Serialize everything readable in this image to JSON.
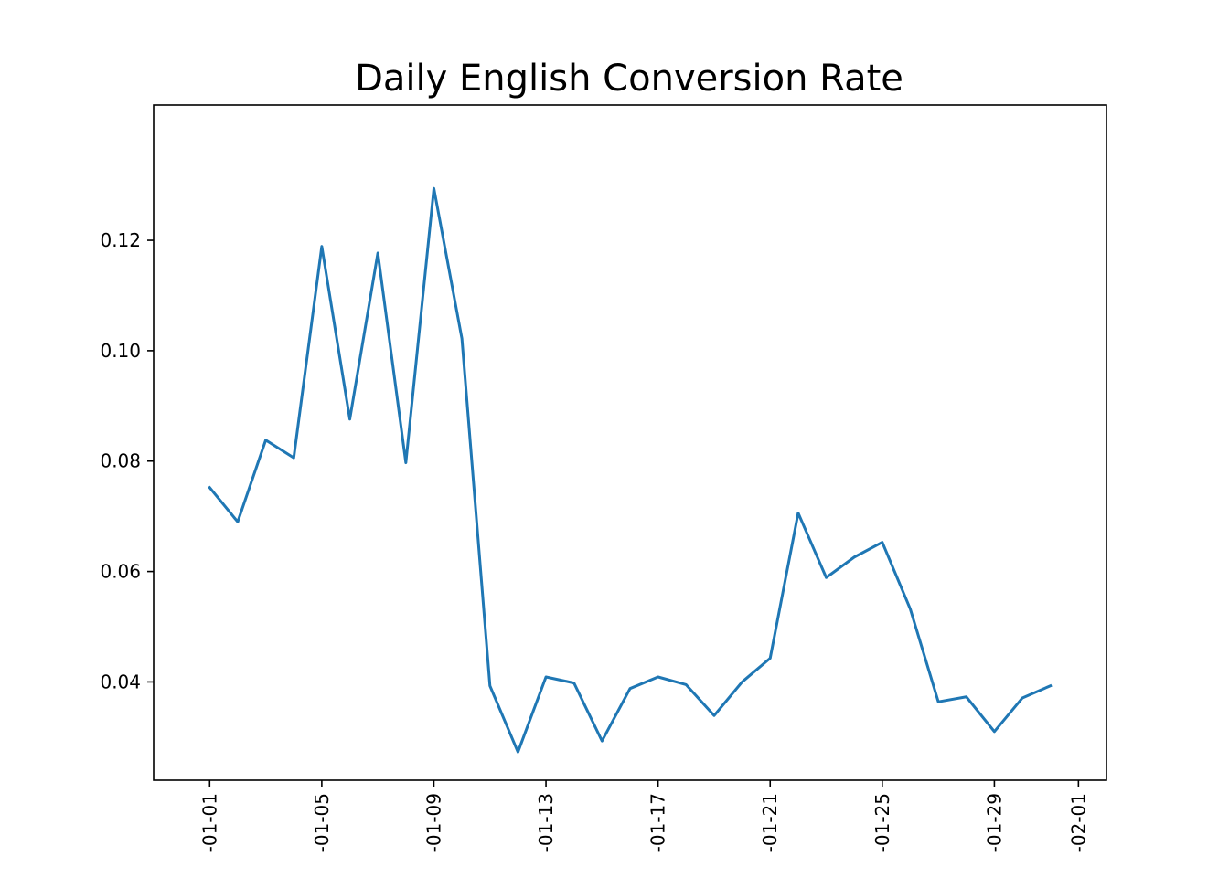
{
  "chart_data": {
    "type": "line",
    "title": "Daily English Conversion Rate",
    "xlabel": "",
    "ylabel": "",
    "x": [
      "2018-01-01",
      "2018-01-02",
      "2018-01-03",
      "2018-01-04",
      "2018-01-05",
      "2018-01-06",
      "2018-01-07",
      "2018-01-08",
      "2018-01-09",
      "2018-01-10",
      "2018-01-11",
      "2018-01-12",
      "2018-01-13",
      "2018-01-14",
      "2018-01-15",
      "2018-01-16",
      "2018-01-17",
      "2018-01-18",
      "2018-01-19",
      "2018-01-20",
      "2018-01-21",
      "2018-01-22",
      "2018-01-23",
      "2018-01-24",
      "2018-01-25",
      "2018-01-26",
      "2018-01-27",
      "2018-01-28",
      "2018-01-29",
      "2018-01-30",
      "2018-01-31"
    ],
    "series": [
      {
        "name": "",
        "color": "#1f77b4",
        "values": [
          0.0752,
          0.069,
          0.0838,
          0.0806,
          0.1189,
          0.0876,
          0.1177,
          0.0797,
          0.1294,
          0.1022,
          0.0393,
          0.0273,
          0.0409,
          0.0398,
          0.0293,
          0.0388,
          0.0409,
          0.0395,
          0.0339,
          0.04,
          0.0443,
          0.0706,
          0.0589,
          0.0626,
          0.0653,
          0.0532,
          0.0364,
          0.0373,
          0.031,
          0.0371,
          0.0393
        ]
      }
    ],
    "xticks": [
      "2018-01-01",
      "2018-01-05",
      "2018-01-09",
      "2018-01-13",
      "2018-01-17",
      "2018-01-21",
      "2018-01-25",
      "2018-01-29",
      "2018-02-01"
    ],
    "xtick_labels": [
      "-01-01",
      "-01-05",
      "-01-09",
      "-01-13",
      "-01-17",
      "-01-21",
      "-01-25",
      "-01-29",
      "-02-01"
    ],
    "xlim": [
      "2017-12-30",
      "2018-02-02"
    ],
    "yticks": [
      0.04,
      0.06,
      0.08,
      0.1,
      0.12
    ],
    "ytick_labels": [
      "0.04",
      "0.06",
      "0.08",
      "0.10",
      "0.12"
    ],
    "ylim": [
      0.0222,
      0.1445
    ],
    "grid": false,
    "legend": false
  }
}
